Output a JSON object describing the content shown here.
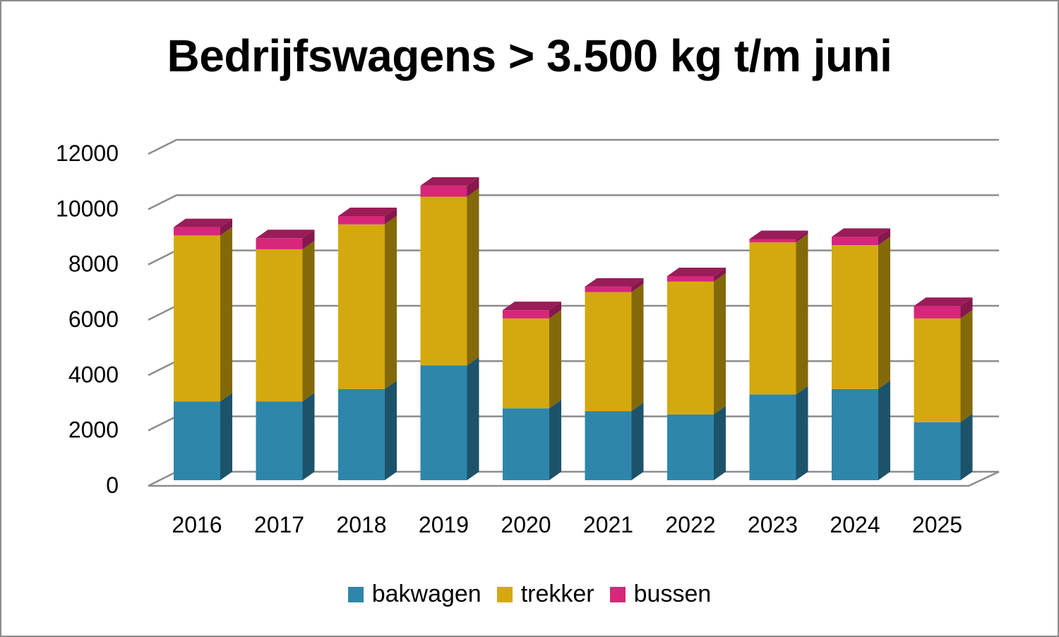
{
  "chart_data": {
    "type": "bar",
    "stacked": true,
    "three_d": true,
    "title": "Bedrijfswagens > 3.500 kg t/m juni",
    "xlabel": "",
    "ylabel": "",
    "ylim": [
      0,
      12000
    ],
    "yticks": [
      "0",
      "2000",
      "4000",
      "6000",
      "8000",
      "10000",
      "12000"
    ],
    "categories": [
      "2016",
      "2017",
      "2018",
      "2019",
      "2020",
      "2021",
      "2022",
      "2023",
      "2024",
      "2025"
    ],
    "series": [
      {
        "name": "bakwagen",
        "color": "#2e86ab",
        "values": [
          2850,
          2850,
          3300,
          4150,
          2600,
          2500,
          2380,
          3100,
          3300,
          2100
        ]
      },
      {
        "name": "trekker",
        "color": "#d4a90f",
        "values": [
          6000,
          5500,
          5950,
          6100,
          3250,
          4300,
          4800,
          5500,
          5200,
          3750
        ]
      },
      {
        "name": "bussen",
        "color": "#d6277a",
        "values": [
          300,
          400,
          300,
          400,
          300,
          200,
          200,
          120,
          300,
          450
        ]
      }
    ],
    "grid": true,
    "legend_position": "bottom"
  }
}
